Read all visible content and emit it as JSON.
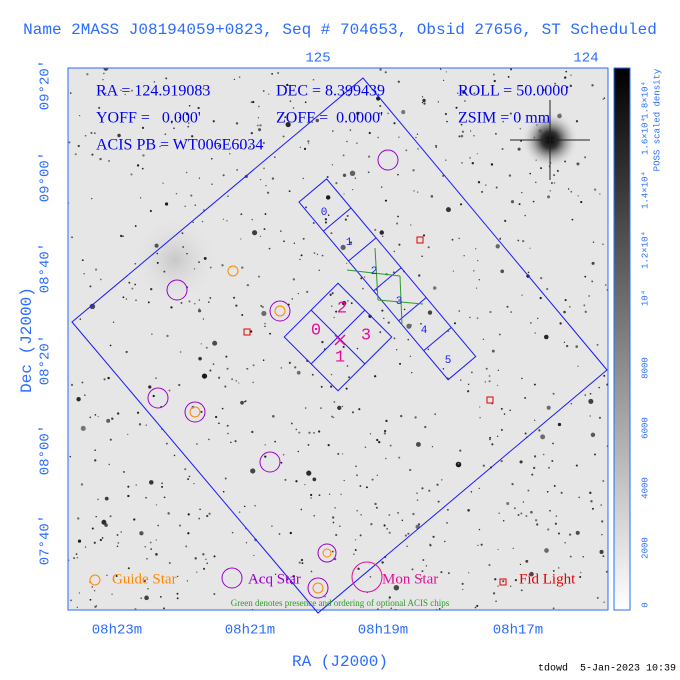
{
  "header": {
    "title": "Name 2MASS J08194059+0823, Seq # 704653, Obsid 27656, ST Scheduled"
  },
  "axes": {
    "top_ticks": [
      "125",
      "124"
    ],
    "x_ticks": [
      "08h23m",
      "08h21m",
      "08h19m",
      "08h17m"
    ],
    "y_ticks": [
      "09°20'",
      "09°00'",
      "08°40'",
      "08°20'",
      "08°00'",
      "07°40'"
    ],
    "x_label": "RA (J2000)",
    "y_label": "Dec (J2000)"
  },
  "info": {
    "ra": "RA = 124.919083",
    "dec": "DEC = 8.399439",
    "roll": "ROLL = 50.0000",
    "yoff": "YOFF =   0.000'",
    "zoff": "ZOFF =  0.0000'",
    "zsim": "ZSIM = 0 mm",
    "acis_pb": "ACIS PB = WT006E6034"
  },
  "chips": {
    "i": [
      "0",
      "2",
      "3",
      "1"
    ],
    "s": [
      "0",
      "1",
      "2",
      "3",
      "4",
      "5"
    ]
  },
  "colorbar": {
    "label": "POSS scaled density",
    "ticks": [
      "0",
      "2000",
      "4000",
      "6000",
      "8000",
      "10⁴",
      "1.2×10⁴",
      "1.4×10⁴",
      "1.6×10⁴",
      "1.8×10⁴"
    ]
  },
  "legend": [
    "Guide Star",
    "Acq Star",
    "Mon Star",
    "Fid Light"
  ],
  "note": "Green denotes presence and ordering of optional ACIS chips",
  "footer": "tdowd  5-Jan-2023 10:39"
}
